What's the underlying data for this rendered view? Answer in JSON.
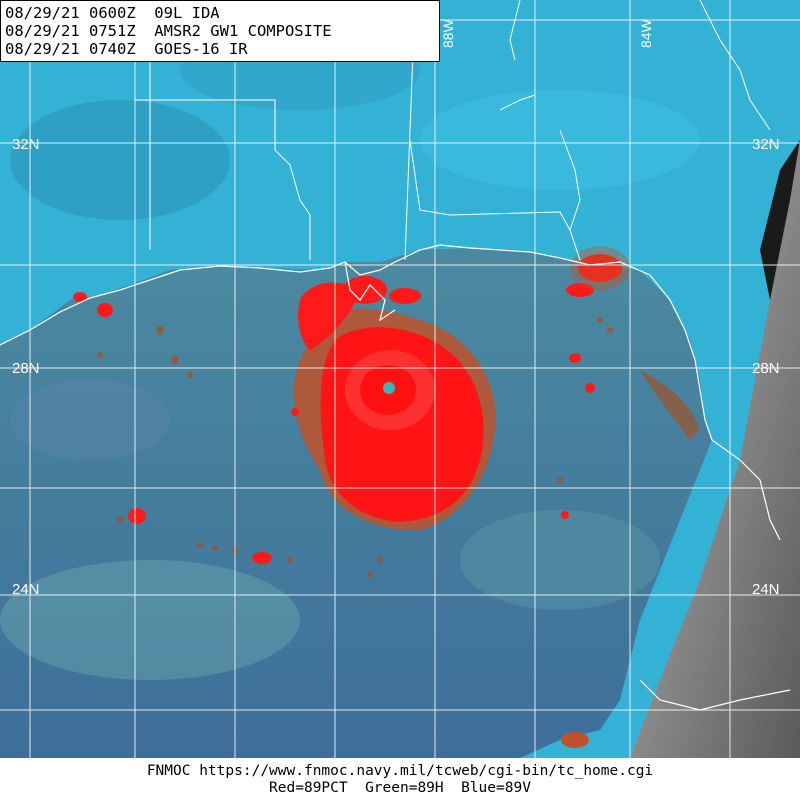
{
  "header": {
    "lines": [
      "08/29/21 0600Z  09L IDA",
      "08/29/21 0751Z  AMSR2 GW1 COMPOSITE",
      "08/29/21 0740Z  GOES-16 IR"
    ]
  },
  "grid": {
    "lat_labels": [
      "32N",
      "28N",
      "24N"
    ],
    "lon_labels": [
      "88W",
      "84W"
    ]
  },
  "footer": {
    "line1": "FNMOC https://www.fnmoc.navy.mil/tcweb/cgi-bin/tc_home.cgi",
    "line2": "Red=89PCT  Green=89H  Blue=89V"
  },
  "colors": {
    "ocean": "#3f7f9f",
    "land": "#2fb3d8",
    "convection": "#ff1a1a",
    "grid": "#ffffff",
    "ir_swath": "#7a7a7a"
  }
}
